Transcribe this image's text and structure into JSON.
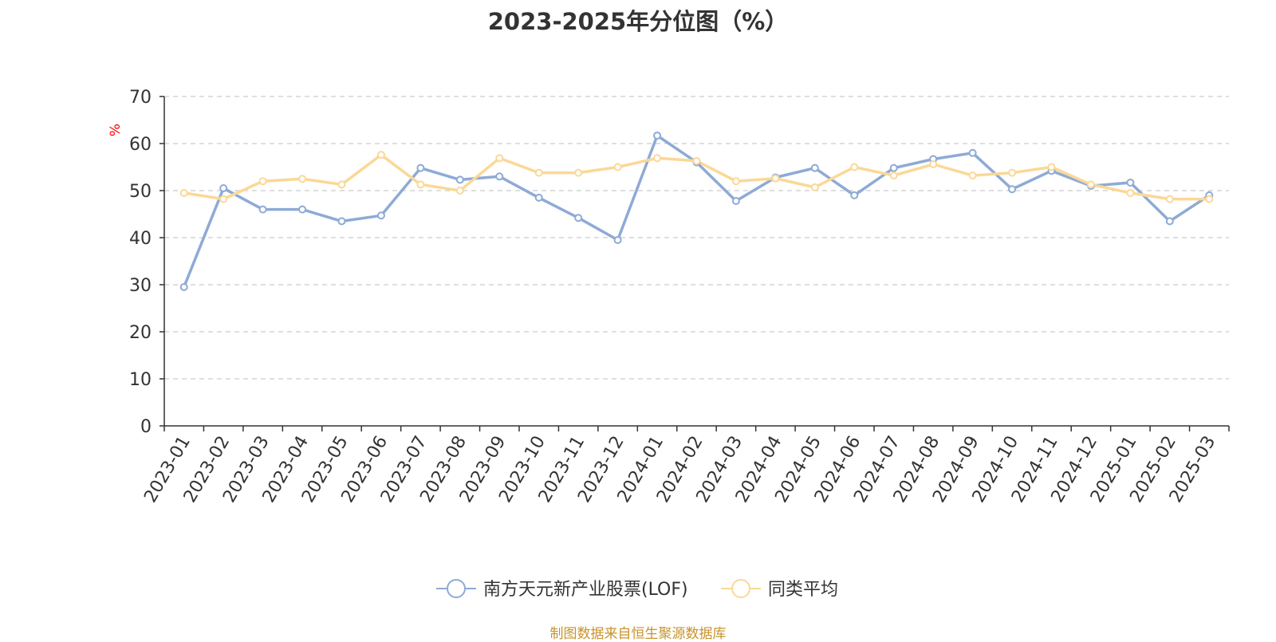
{
  "chart_data": {
    "type": "line",
    "title": "2023-2025年分位图（%）",
    "ylabel": "%",
    "xlabel": "",
    "ylim": [
      0,
      70
    ],
    "yticks": [
      0,
      10,
      20,
      30,
      40,
      50,
      60,
      70
    ],
    "grid": true,
    "legend_position": "bottom",
    "categories": [
      "2023-01",
      "2023-02",
      "2023-03",
      "2023-04",
      "2023-05",
      "2023-06",
      "2023-07",
      "2023-08",
      "2023-09",
      "2023-10",
      "2023-11",
      "2023-12",
      "2024-01",
      "2024-02",
      "2024-03",
      "2024-04",
      "2024-05",
      "2024-06",
      "2024-07",
      "2024-08",
      "2024-09",
      "2024-10",
      "2024-11",
      "2024-12",
      "2025-01",
      "2025-02",
      "2025-03"
    ],
    "series": [
      {
        "name": "南方天元新产业股票(LOF)",
        "color": "#8eaad6",
        "values": [
          29.5,
          50.5,
          46.0,
          46.0,
          43.5,
          44.7,
          54.8,
          52.3,
          53.0,
          48.5,
          44.2,
          39.5,
          61.7,
          56.0,
          47.8,
          52.8,
          54.8,
          49.0,
          54.8,
          56.7,
          58.0,
          50.3,
          54.2,
          51.0,
          51.7,
          43.5,
          49.0
        ]
      },
      {
        "name": "同类平均",
        "color": "#fbd896",
        "values": [
          49.5,
          48.2,
          52.0,
          52.5,
          51.3,
          57.6,
          51.3,
          50.0,
          56.9,
          53.8,
          53.8,
          55.0,
          56.9,
          56.3,
          52.0,
          52.6,
          50.7,
          55.0,
          53.2,
          55.6,
          53.2,
          53.8,
          55.0,
          51.3,
          49.5,
          48.2,
          48.2
        ]
      }
    ]
  },
  "source_note": "制图数据来自恒生聚源数据库",
  "colors": {
    "axis": "#333333",
    "grid": "#cccccc",
    "ylabel": "#ff0000",
    "source": "#c8932b"
  }
}
